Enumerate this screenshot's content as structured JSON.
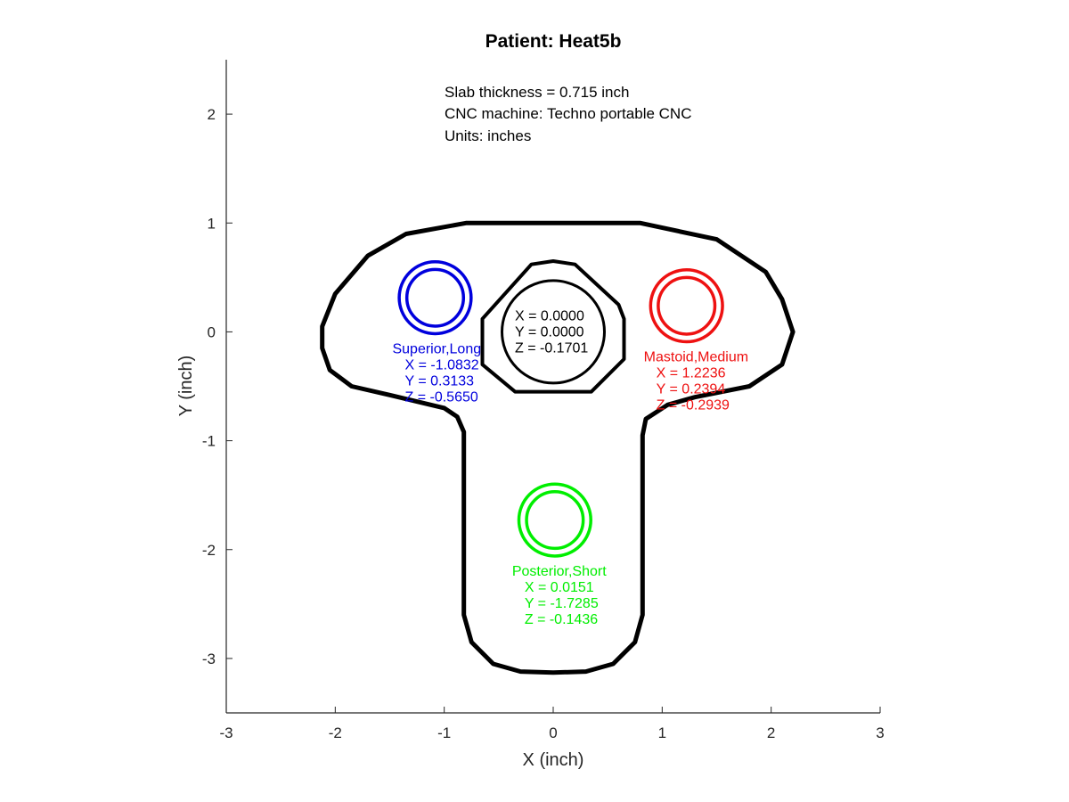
{
  "chart_data": {
    "type": "line",
    "title": "Patient: Heat5b",
    "xlabel": "X (inch)",
    "ylabel": "Y (inch)",
    "xlim": [
      -3,
      3
    ],
    "ylim": [
      -3.5,
      2.5
    ],
    "xticks": [
      -3,
      -2,
      -1,
      0,
      1,
      2,
      3
    ],
    "yticks": [
      -3,
      -2,
      -1,
      0,
      1,
      2
    ],
    "xtick_labels": [
      "-3",
      "-2",
      "-1",
      "0",
      "1",
      "2",
      "3"
    ],
    "ytick_labels": [
      "-3",
      "-2",
      "-1",
      "0",
      "1",
      "2"
    ],
    "grid": false,
    "info_lines": [
      "Slab thickness = 0.715 inch",
      "CNC machine: Techno portable CNC",
      "Units: inches"
    ],
    "outline": {
      "color": "#000000",
      "points": [
        [
          -0.8,
          1.0
        ],
        [
          0.8,
          1.0
        ],
        [
          1.5,
          0.85
        ],
        [
          1.95,
          0.55
        ],
        [
          2.1,
          0.3
        ],
        [
          2.2,
          0.0
        ],
        [
          2.1,
          -0.3
        ],
        [
          1.8,
          -0.5
        ],
        [
          1.3,
          -0.6
        ],
        [
          1.05,
          -0.67
        ],
        [
          0.85,
          -0.8
        ],
        [
          0.82,
          -0.95
        ],
        [
          0.82,
          -2.6
        ],
        [
          0.75,
          -2.85
        ],
        [
          0.55,
          -3.05
        ],
        [
          0.3,
          -3.12
        ],
        [
          0.0,
          -3.13
        ],
        [
          -0.3,
          -3.12
        ],
        [
          -0.55,
          -3.05
        ],
        [
          -0.75,
          -2.85
        ],
        [
          -0.82,
          -2.6
        ],
        [
          -0.82,
          -0.92
        ],
        [
          -0.88,
          -0.78
        ],
        [
          -1.0,
          -0.7
        ],
        [
          -1.5,
          -0.58
        ],
        [
          -1.85,
          -0.5
        ],
        [
          -2.05,
          -0.35
        ],
        [
          -2.12,
          -0.15
        ],
        [
          -2.12,
          0.05
        ],
        [
          -2.0,
          0.35
        ],
        [
          -1.7,
          0.7
        ],
        [
          -1.35,
          0.9
        ],
        [
          -0.8,
          1.0
        ]
      ]
    },
    "center_cutout": {
      "color": "#000000",
      "points": [
        [
          -0.2,
          0.62
        ],
        [
          0.0,
          0.65
        ],
        [
          0.2,
          0.62
        ],
        [
          0.6,
          0.25
        ],
        [
          0.65,
          0.12
        ],
        [
          0.65,
          -0.25
        ],
        [
          0.35,
          -0.55
        ],
        [
          -0.35,
          -0.55
        ],
        [
          -0.65,
          -0.3
        ],
        [
          -0.65,
          0.12
        ],
        [
          -0.2,
          0.62
        ]
      ]
    },
    "center_circle": {
      "x": 0.0,
      "y": 0.0,
      "r": 0.47,
      "color": "#000000"
    },
    "center_labels": [
      "X = 0.0000",
      "Y = 0.0000",
      "Z = -0.1701"
    ],
    "series": [
      {
        "name": "Superior,Long",
        "color": "#0000dd",
        "x": -1.0832,
        "y": 0.3133,
        "r_outer": 0.33,
        "r_inner": 0.26,
        "labels": [
          "Superior,Long",
          "X = -1.0832",
          "Y = 0.3133",
          "Z = -0.5650"
        ]
      },
      {
        "name": "Mastoid,Medium",
        "color": "#ee1111",
        "x": 1.2236,
        "y": 0.2394,
        "r_outer": 0.33,
        "r_inner": 0.26,
        "labels": [
          "Mastoid,Medium",
          "X = 1.2236",
          "Y = 0.2394",
          "Z = -0.2939"
        ]
      },
      {
        "name": "Posterior,Short",
        "color": "#00ee00",
        "x": 0.0151,
        "y": -1.7285,
        "r_outer": 0.33,
        "r_inner": 0.26,
        "labels": [
          "Posterior,Short",
          "X = 0.0151",
          "Y = -1.7285",
          "Z = -0.1436"
        ]
      }
    ]
  }
}
